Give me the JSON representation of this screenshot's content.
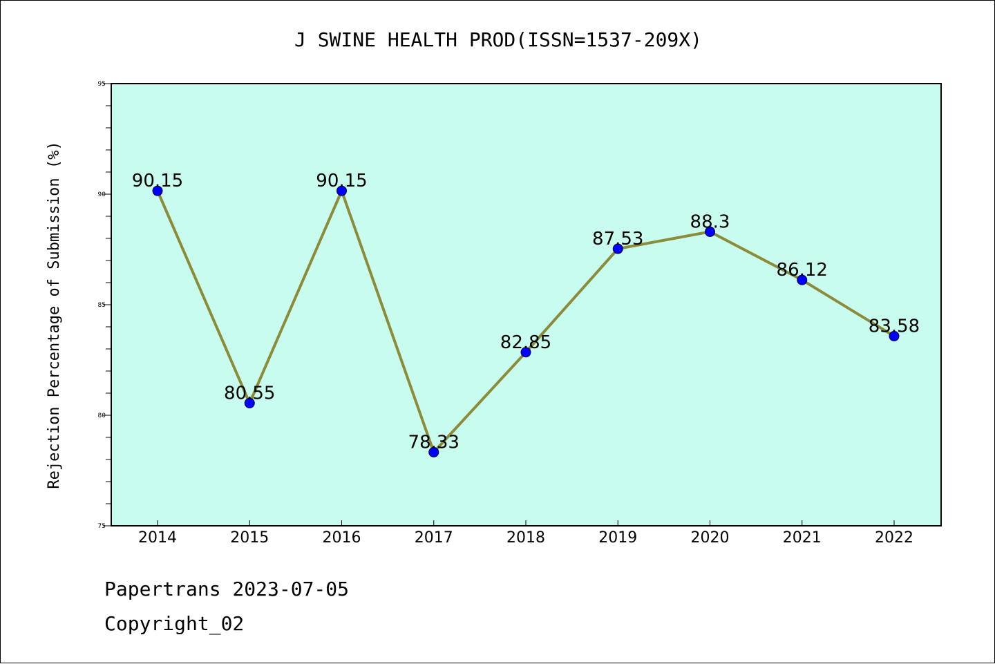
{
  "chart_data": {
    "type": "line",
    "title": "J SWINE HEALTH PROD(ISSN=1537-209X)",
    "xlabel": "",
    "ylabel": "Rejection Percentage of Submission (%)",
    "categories": [
      "2014",
      "2015",
      "2016",
      "2017",
      "2018",
      "2019",
      "2020",
      "2021",
      "2022"
    ],
    "series": [
      {
        "values": [
          90.15,
          80.55,
          90.15,
          78.33,
          82.85,
          87.53,
          88.3,
          86.12,
          83.58
        ],
        "labels": [
          "90.15",
          "80.55",
          "90.15",
          "78.33",
          "82.85",
          "87.53",
          "88.3",
          "86.12",
          "83.58"
        ],
        "line_color": "#8b8b3a",
        "marker_color": "#0000ff"
      }
    ],
    "ylim": [
      75,
      95
    ],
    "yticks": [
      "75",
      "80",
      "85",
      "90",
      "95"
    ],
    "grid": false,
    "plot_background": "#c8fcee"
  },
  "footer": {
    "line1": "Papertrans 2023-07-05",
    "line2": "Copyright_02"
  }
}
